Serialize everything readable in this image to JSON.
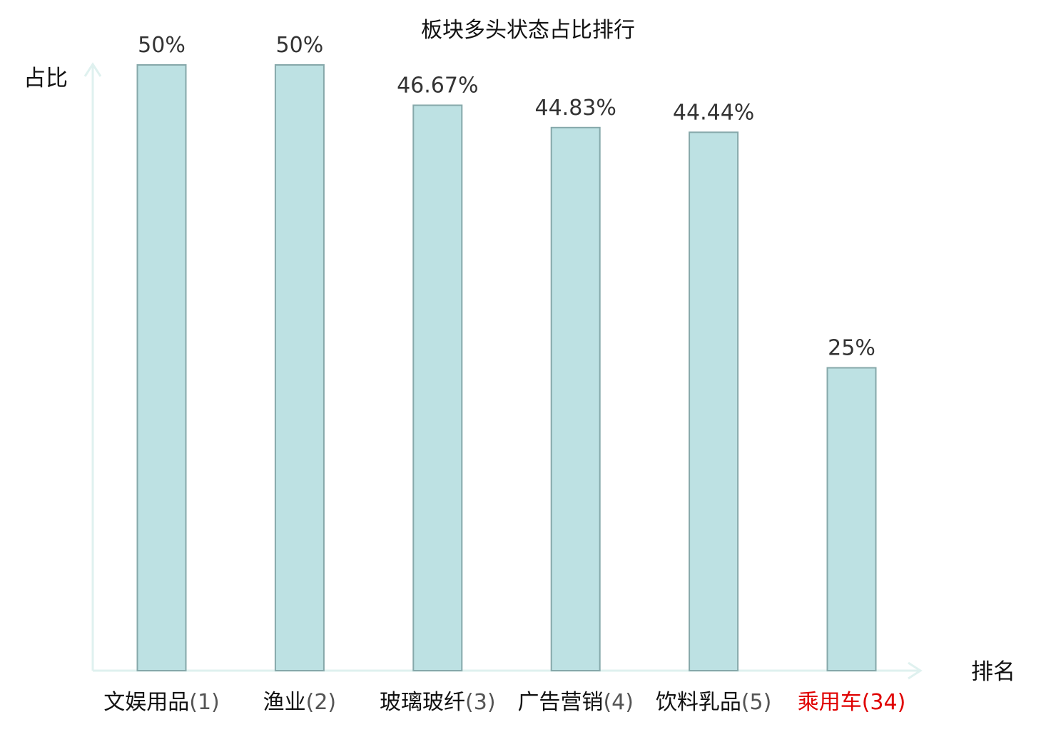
{
  "chart_data": {
    "type": "bar",
    "title": "板块多头状态占比排行",
    "ylabel": "占比",
    "xlabel": "排名",
    "categories": [
      {
        "name": "文娱用品",
        "rank": "(1)"
      },
      {
        "name": "渔业",
        "rank": "(2)"
      },
      {
        "name": "玻璃玻纤",
        "rank": "(3)"
      },
      {
        "name": "广告营销",
        "rank": "(4)"
      },
      {
        "name": "饮料乳品",
        "rank": "(5)"
      },
      {
        "name": "乘用车",
        "rank": "(34)",
        "highlight": true
      }
    ],
    "values": [
      50,
      50,
      46.67,
      44.83,
      44.44,
      25
    ],
    "value_labels": [
      "50%",
      "50%",
      "46.67%",
      "44.83%",
      "44.44%",
      "25%"
    ],
    "ylim": [
      0,
      50
    ],
    "grid": false,
    "colors": {
      "bar_fill": "#bde1e3",
      "bar_stroke": "#86a8aa",
      "axis": "#dff1ef",
      "highlight": "#e00000"
    }
  }
}
